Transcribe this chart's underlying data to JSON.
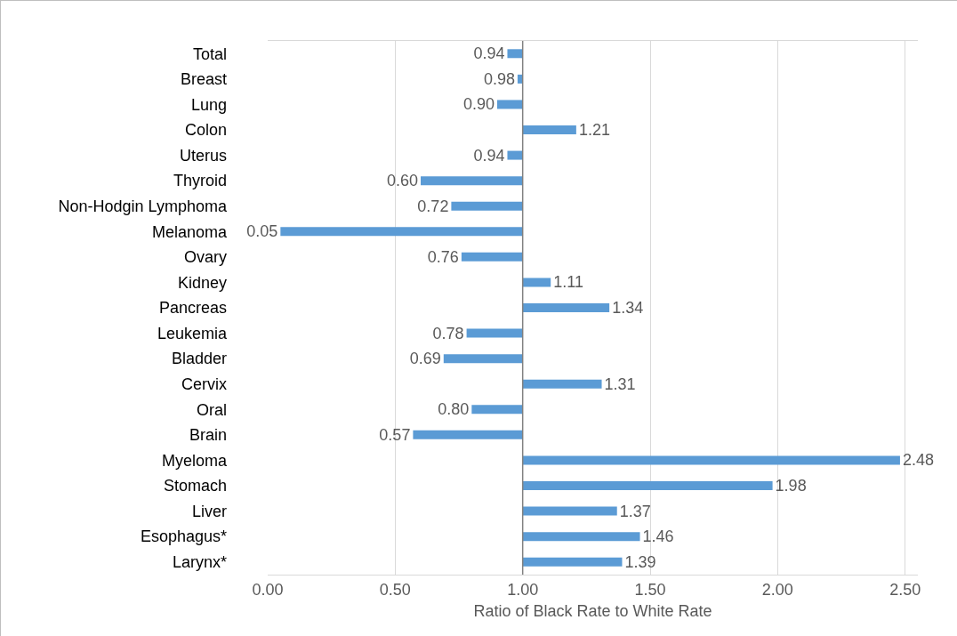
{
  "chart_data": {
    "type": "bar",
    "orientation": "horizontal",
    "xlabel": "Ratio of Black Rate to White Rate",
    "categories": [
      "Total",
      "Breast",
      "Lung",
      "Colon",
      "Uterus",
      "Thyroid",
      "Non-Hodgin Lymphoma",
      "Melanoma",
      "Ovary",
      "Kidney",
      "Pancreas",
      "Leukemia",
      "Bladder",
      "Cervix",
      "Oral",
      "Brain",
      "Myeloma",
      "Stomach",
      "Liver",
      "Esophagus*",
      "Larynx*"
    ],
    "base": [
      1,
      1,
      1,
      1,
      1,
      1,
      1,
      1,
      1,
      1,
      1,
      1,
      1,
      1,
      1,
      1,
      1,
      1,
      1,
      1,
      1
    ],
    "values": [
      -0.06,
      -0.02,
      -0.1,
      0.21,
      -0.06,
      -0.4,
      -0.28,
      -0.95,
      -0.24,
      0.11,
      0.34,
      -0.22,
      -0.31,
      0.31,
      -0.2,
      -0.43,
      1.48,
      0.98,
      0.37,
      0.46,
      0.39
    ],
    "value_labels": [
      "0.94",
      "0.98",
      "0.90",
      "1.21",
      "0.94",
      "0.60",
      "0.72",
      "0.05",
      "0.76",
      "1.11",
      "1.34",
      "0.78",
      "0.69",
      "1.31",
      "0.80",
      "0.57",
      "2.48",
      "1.98",
      "1.37",
      "1.46",
      "1.39"
    ],
    "color": "#5b9bd5",
    "xlim": [
      0,
      2.55
    ],
    "xticks": [
      {
        "value": 0,
        "label": "0.00"
      },
      {
        "value": 0.5,
        "label": "0.50"
      },
      {
        "value": 1,
        "label": "1.00"
      },
      {
        "value": 1.5,
        "label": "1.50"
      },
      {
        "value": 2,
        "label": "2.00"
      },
      {
        "value": 2.5,
        "label": "2.50"
      }
    ],
    "ref_lines": [
      {
        "axis": "x",
        "value": 1,
        "color": "#808080"
      }
    ],
    "grid": "x"
  }
}
